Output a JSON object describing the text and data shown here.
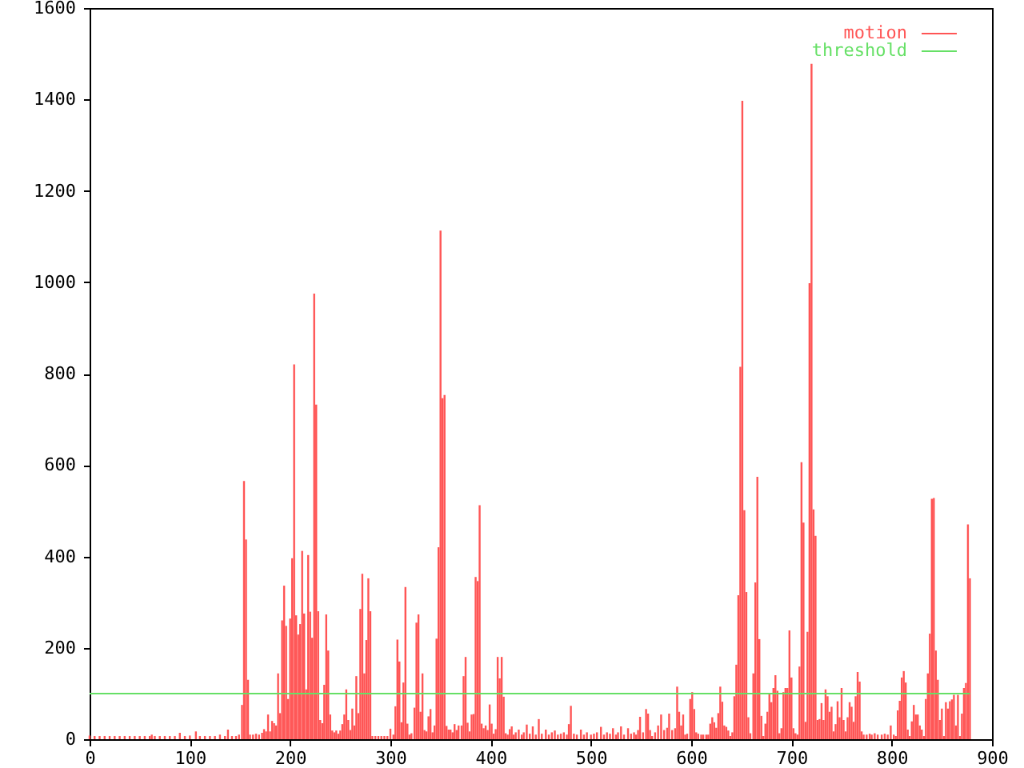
{
  "chart_data": {
    "type": "bar",
    "x": [
      0,
      5,
      10,
      15,
      20,
      25,
      30,
      35,
      40,
      45,
      50,
      55,
      60,
      62,
      65,
      70,
      75,
      80,
      85,
      90,
      95,
      100,
      106,
      110,
      115,
      120,
      125,
      130,
      135,
      138,
      142,
      146,
      149,
      152,
      154,
      156,
      158,
      160,
      163,
      166,
      169,
      172,
      174,
      176,
      178,
      180,
      182,
      184,
      186,
      188,
      190,
      192,
      194,
      196,
      198,
      200,
      202,
      204,
      206,
      208,
      210,
      212,
      214,
      216,
      218,
      220,
      222,
      224,
      226,
      228,
      230,
      232,
      234,
      236,
      238,
      240,
      242,
      244,
      246,
      248,
      250,
      252,
      254,
      256,
      258,
      260,
      262,
      264,
      266,
      268,
      270,
      272,
      274,
      276,
      278,
      280,
      282,
      285,
      288,
      291,
      294,
      297,
      300,
      303,
      305,
      307,
      309,
      311,
      313,
      315,
      317,
      319,
      321,
      324,
      326,
      328,
      330,
      332,
      334,
      336,
      338,
      340,
      342,
      344,
      346,
      348,
      350,
      352,
      354,
      356,
      358,
      360,
      362,
      364,
      366,
      368,
      371,
      373,
      375,
      377,
      379,
      381,
      383,
      385,
      387,
      389,
      391,
      393,
      395,
      397,
      399,
      401,
      403,
      405,
      407,
      409,
      411,
      413,
      415,
      417,
      419,
      421,
      423,
      425,
      428,
      431,
      433,
      436,
      439,
      442,
      445,
      448,
      451,
      455,
      458,
      461,
      464,
      467,
      470,
      473,
      476,
      478,
      480,
      483,
      486,
      490,
      493,
      496,
      500,
      503,
      506,
      510,
      513,
      516,
      519,
      522,
      525,
      527,
      530,
      533,
      537,
      540,
      543,
      545,
      547,
      549,
      552,
      555,
      557,
      559,
      561,
      564,
      567,
      570,
      573,
      576,
      578,
      581,
      584,
      586,
      588,
      590,
      592,
      594,
      596,
      599,
      601,
      603,
      605,
      607,
      610,
      612,
      615,
      617,
      619,
      621,
      623,
      625,
      627,
      629,
      631,
      633,
      635,
      637,
      639,
      641,
      643,
      645,
      647,
      649,
      651,
      653,
      655,
      657,
      659,
      662,
      664,
      666,
      668,
      670,
      672,
      674,
      676,
      678,
      680,
      682,
      684,
      686,
      688,
      690,
      692,
      694,
      696,
      698,
      700,
      702,
      704,
      706,
      708,
      710,
      712,
      714,
      716,
      718,
      720,
      722,
      724,
      726,
      728,
      730,
      732,
      734,
      736,
      738,
      740,
      742,
      744,
      746,
      748,
      750,
      752,
      754,
      756,
      758,
      760,
      762,
      764,
      766,
      768,
      770,
      772,
      775,
      778,
      780,
      783,
      786,
      790,
      793,
      796,
      799,
      802,
      804,
      806,
      808,
      810,
      812,
      814,
      816,
      818,
      820,
      822,
      824,
      826,
      828,
      830,
      832,
      834,
      836,
      838,
      840,
      842,
      844,
      846,
      848,
      850,
      852,
      854,
      856,
      858,
      860,
      862,
      864,
      866,
      868,
      870,
      872,
      874,
      876,
      878
    ],
    "series": [
      {
        "name": "motion",
        "color": "#ff5555",
        "values": [
          8,
          7,
          7,
          7,
          7,
          7,
          7,
          7,
          7,
          7,
          7,
          7,
          7,
          10,
          7,
          7,
          7,
          7,
          7,
          14,
          7,
          8,
          17,
          7,
          7,
          7,
          7,
          10,
          7,
          21,
          7,
          7,
          10,
          75,
          565,
          437,
          130,
          10,
          10,
          12,
          10,
          14,
          22,
          17,
          54,
          17,
          40,
          35,
          30,
          144,
          57,
          260,
          336,
          248,
          88,
          264,
          396,
          820,
          271,
          229,
          252,
          412,
          275,
          109,
          403,
          279,
          222,
          975,
          732,
          280,
          42,
          35,
          119,
          273,
          194,
          54,
          19,
          15,
          19,
          12,
          19,
          33,
          54,
          109,
          42,
          20,
          67,
          30,
          138,
          57,
          285,
          362,
          144,
          217,
          352,
          280,
          7,
          7,
          7,
          7,
          7,
          7,
          23,
          10,
          72,
          218,
          170,
          37,
          124,
          333,
          34,
          10,
          13,
          69,
          255,
          273,
          60,
          144,
          20,
          17,
          50,
          66,
          15,
          30,
          220,
          420,
          1113,
          746,
          753,
          29,
          21,
          21,
          15,
          33,
          20,
          30,
          30,
          138,
          180,
          36,
          17,
          54,
          55,
          355,
          346,
          512,
          34,
          24,
          30,
          20,
          76,
          34,
          12,
          22,
          180,
          133,
          180,
          93,
          13,
          10,
          22,
          28,
          10,
          15,
          21,
          10,
          15,
          32,
          12,
          28,
          10,
          44,
          12,
          21,
          10,
          15,
          19,
          10,
          12,
          15,
          10,
          33,
          73,
          12,
          10,
          21,
          10,
          15,
          10,
          12,
          15,
          27,
          10,
          15,
          12,
          24,
          10,
          15,
          28,
          10,
          24,
          12,
          15,
          10,
          20,
          49,
          15,
          66,
          56,
          20,
          7,
          15,
          30,
          54,
          20,
          25,
          56,
          20,
          24,
          115,
          60,
          30,
          54,
          10,
          12,
          88,
          103,
          66,
          15,
          12,
          10,
          10,
          10,
          10,
          34,
          48,
          37,
          25,
          57,
          115,
          82,
          30,
          27,
          19,
          7,
          15,
          94,
          163,
          315,
          815,
          1397,
          501,
          322,
          48,
          13,
          144,
          343,
          574,
          219,
          51,
          7,
          34,
          60,
          100,
          81,
          112,
          140,
          106,
          13,
          24,
          103,
          112,
          112,
          238,
          135,
          24,
          13,
          10,
          159,
          606,
          474,
          38,
          235,
          998,
          1478,
          503,
          445,
          42,
          44,
          79,
          42,
          109,
          94,
          60,
          71,
          17,
          33,
          83,
          48,
          112,
          42,
          17,
          48,
          81,
          71,
          38,
          94,
          147,
          126,
          17,
          10,
          10,
          12,
          10,
          13,
          10,
          10,
          12,
          10,
          30,
          10,
          7,
          63,
          84,
          135,
          149,
          124,
          21,
          7,
          39,
          75,
          54,
          54,
          30,
          21,
          7,
          88,
          144,
          231,
          526,
          528,
          194,
          130,
          42,
          67,
          7,
          81,
          67,
          83,
          87,
          97,
          30,
          97,
          7,
          56,
          112,
          123,
          470,
          352
        ]
      },
      {
        "name": "threshold",
        "type": "line",
        "color": "#66e066",
        "x": [
          0,
          878
        ],
        "values": [
          100,
          100
        ]
      }
    ],
    "xlim": [
      0,
      900
    ],
    "ylim": [
      0,
      1600
    ],
    "xticks": [
      0,
      100,
      200,
      300,
      400,
      500,
      600,
      700,
      800,
      900
    ],
    "yticks": [
      0,
      200,
      400,
      600,
      800,
      1000,
      1200,
      1400,
      1600
    ],
    "legend": "top right"
  }
}
